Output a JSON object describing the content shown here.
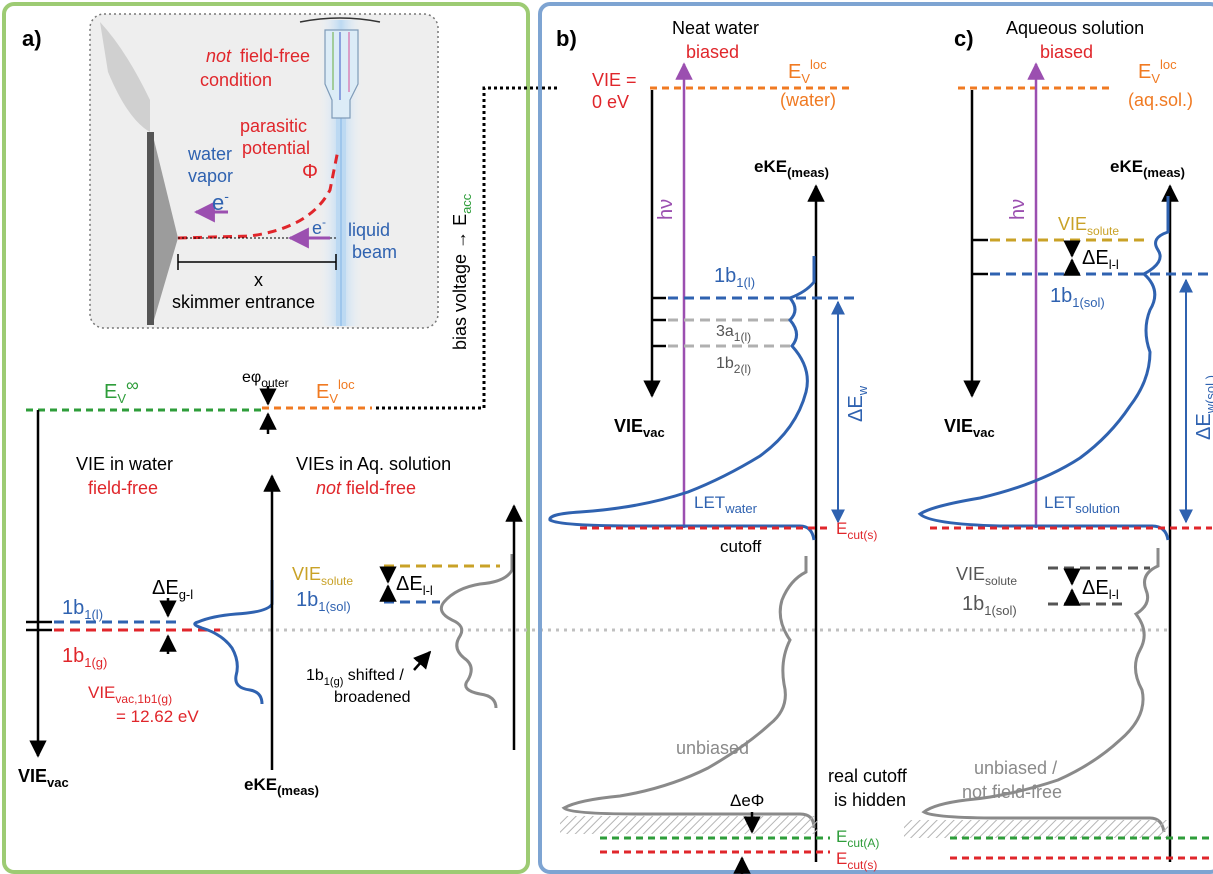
{
  "panel_a": {
    "label": "a)",
    "inset": {
      "not_field_free_1": "not",
      "not_field_free_2": "field-free",
      "condition": "condition",
      "parasitic": "parasitic",
      "potential": "potential",
      "phi": "Φ",
      "water": "water",
      "vapor": "vapor",
      "electron": "e",
      "electron_sup": "-",
      "liquid": "liquid",
      "beam": "beam",
      "x": "x",
      "skimmer": "skimmer entrance"
    },
    "bias_voltage": "bias voltage → E",
    "bias_sub": "acc",
    "ev_inf": "E",
    "ev_inf_sub": "V",
    "ev_inf_sup": "∞",
    "ephi": "eφ",
    "ephi_sub": "outer",
    "ev_loc": "E",
    "ev_loc_sub": "V",
    "ev_loc_sup": "loc",
    "vie_water_1": "VIE in water",
    "vie_water_2": "field-free",
    "vies_aq_1": "VIEs in Aq. solution",
    "vies_aq_2a": "not",
    "vies_aq_2b": " field-free",
    "de_gl": "ΔE",
    "de_gl_sub": "g-l",
    "b1l": "1b",
    "b1l_sub": "1(l)",
    "b1g": "1b",
    "b1g_sub": "1(g)",
    "vie_vac_1b1g": "VIE",
    "vie_vac_1b1g_sub": "vac,1b1(g)",
    "vie_value": "= 12.62 eV",
    "vie_solute": "VIE",
    "vie_solute_sub": "solute",
    "de_ll": "ΔE",
    "de_ll_sub": "l-l",
    "b1sol": "1b",
    "b1sol_sub": "1(sol)",
    "shifted_1": "1b",
    "shifted_sub": "1(g)",
    "shifted_1b": " shifted /",
    "shifted_2": "broadened",
    "vie_vac": "VIE",
    "vie_vac_sub": "vac",
    "ekemeas": "eKE",
    "ekemeas_sub": "(meas)"
  },
  "panel_b": {
    "label": "b)",
    "title": "Neat water",
    "subtitle": "biased",
    "vie_eq": "VIE =",
    "vie_zero": "0 eV",
    "ev_loc": "E",
    "ev_loc_sub": "V",
    "ev_loc_sup": "loc",
    "ev_loc_note": "(water)",
    "hv": "hν",
    "ekemeas": "eKE",
    "ekemeas_sub": "(meas)",
    "b1l": "1b",
    "b1l_sub": "1(l)",
    "a1l": "3a",
    "a1l_sub": "1(l)",
    "b2l": "1b",
    "b2l_sub": "2(l)",
    "vie_vac": "VIE",
    "vie_vac_sub": "vac",
    "de_w": "ΔE",
    "de_w_sub": "w",
    "let": "LET",
    "let_sub": "water",
    "cutoff": "cutoff",
    "ecut_s": "E",
    "ecut_s_sub": "cut(s)",
    "unbiased": "unbiased",
    "real_cutoff_1": "real cutoff",
    "real_cutoff_2": "is hidden",
    "deltaephi": "ΔeΦ",
    "ecut_a": "E",
    "ecut_a_sub": "cut(A)"
  },
  "panel_c": {
    "label": "c)",
    "title": "Aqueous solution",
    "subtitle": "biased",
    "ev_loc": "E",
    "ev_loc_sub": "V",
    "ev_loc_sup": "loc",
    "ev_loc_note": "(aq.sol.)",
    "hv": "hν",
    "ekemeas": "eKE",
    "ekemeas_sub": "(meas)",
    "vie_solute": "VIE",
    "vie_solute_sub": "solute",
    "de_ll": "ΔE",
    "de_ll_sub": "l-l",
    "b1sol": "1b",
    "b1sol_sub": "1(sol)",
    "vie_vac": "VIE",
    "vie_vac_sub": "vac",
    "de_wsol": "ΔE",
    "de_wsol_sub": "w(sol.)",
    "let": "LET",
    "let_sub": "solution",
    "vie_solute2": "VIE",
    "vie_solute2_sub": "solute",
    "de_ll2": "ΔE",
    "de_ll2_sub": "l-l",
    "b1sol2": "1b",
    "b1sol2_sub": "1(sol)",
    "unbiased_1": "unbiased /",
    "unbiased_2": "not field-free"
  },
  "colors": {
    "panel_a_border": "#9dcb73",
    "panel_bc_border": "#7ea4d2",
    "red": "#e0262b",
    "blue": "#2f62b0",
    "green": "#2e9d3a",
    "orange": "#f07a22",
    "gold": "#c9a227",
    "purple": "#9b4fb0",
    "gray": "#8a8a8a"
  }
}
